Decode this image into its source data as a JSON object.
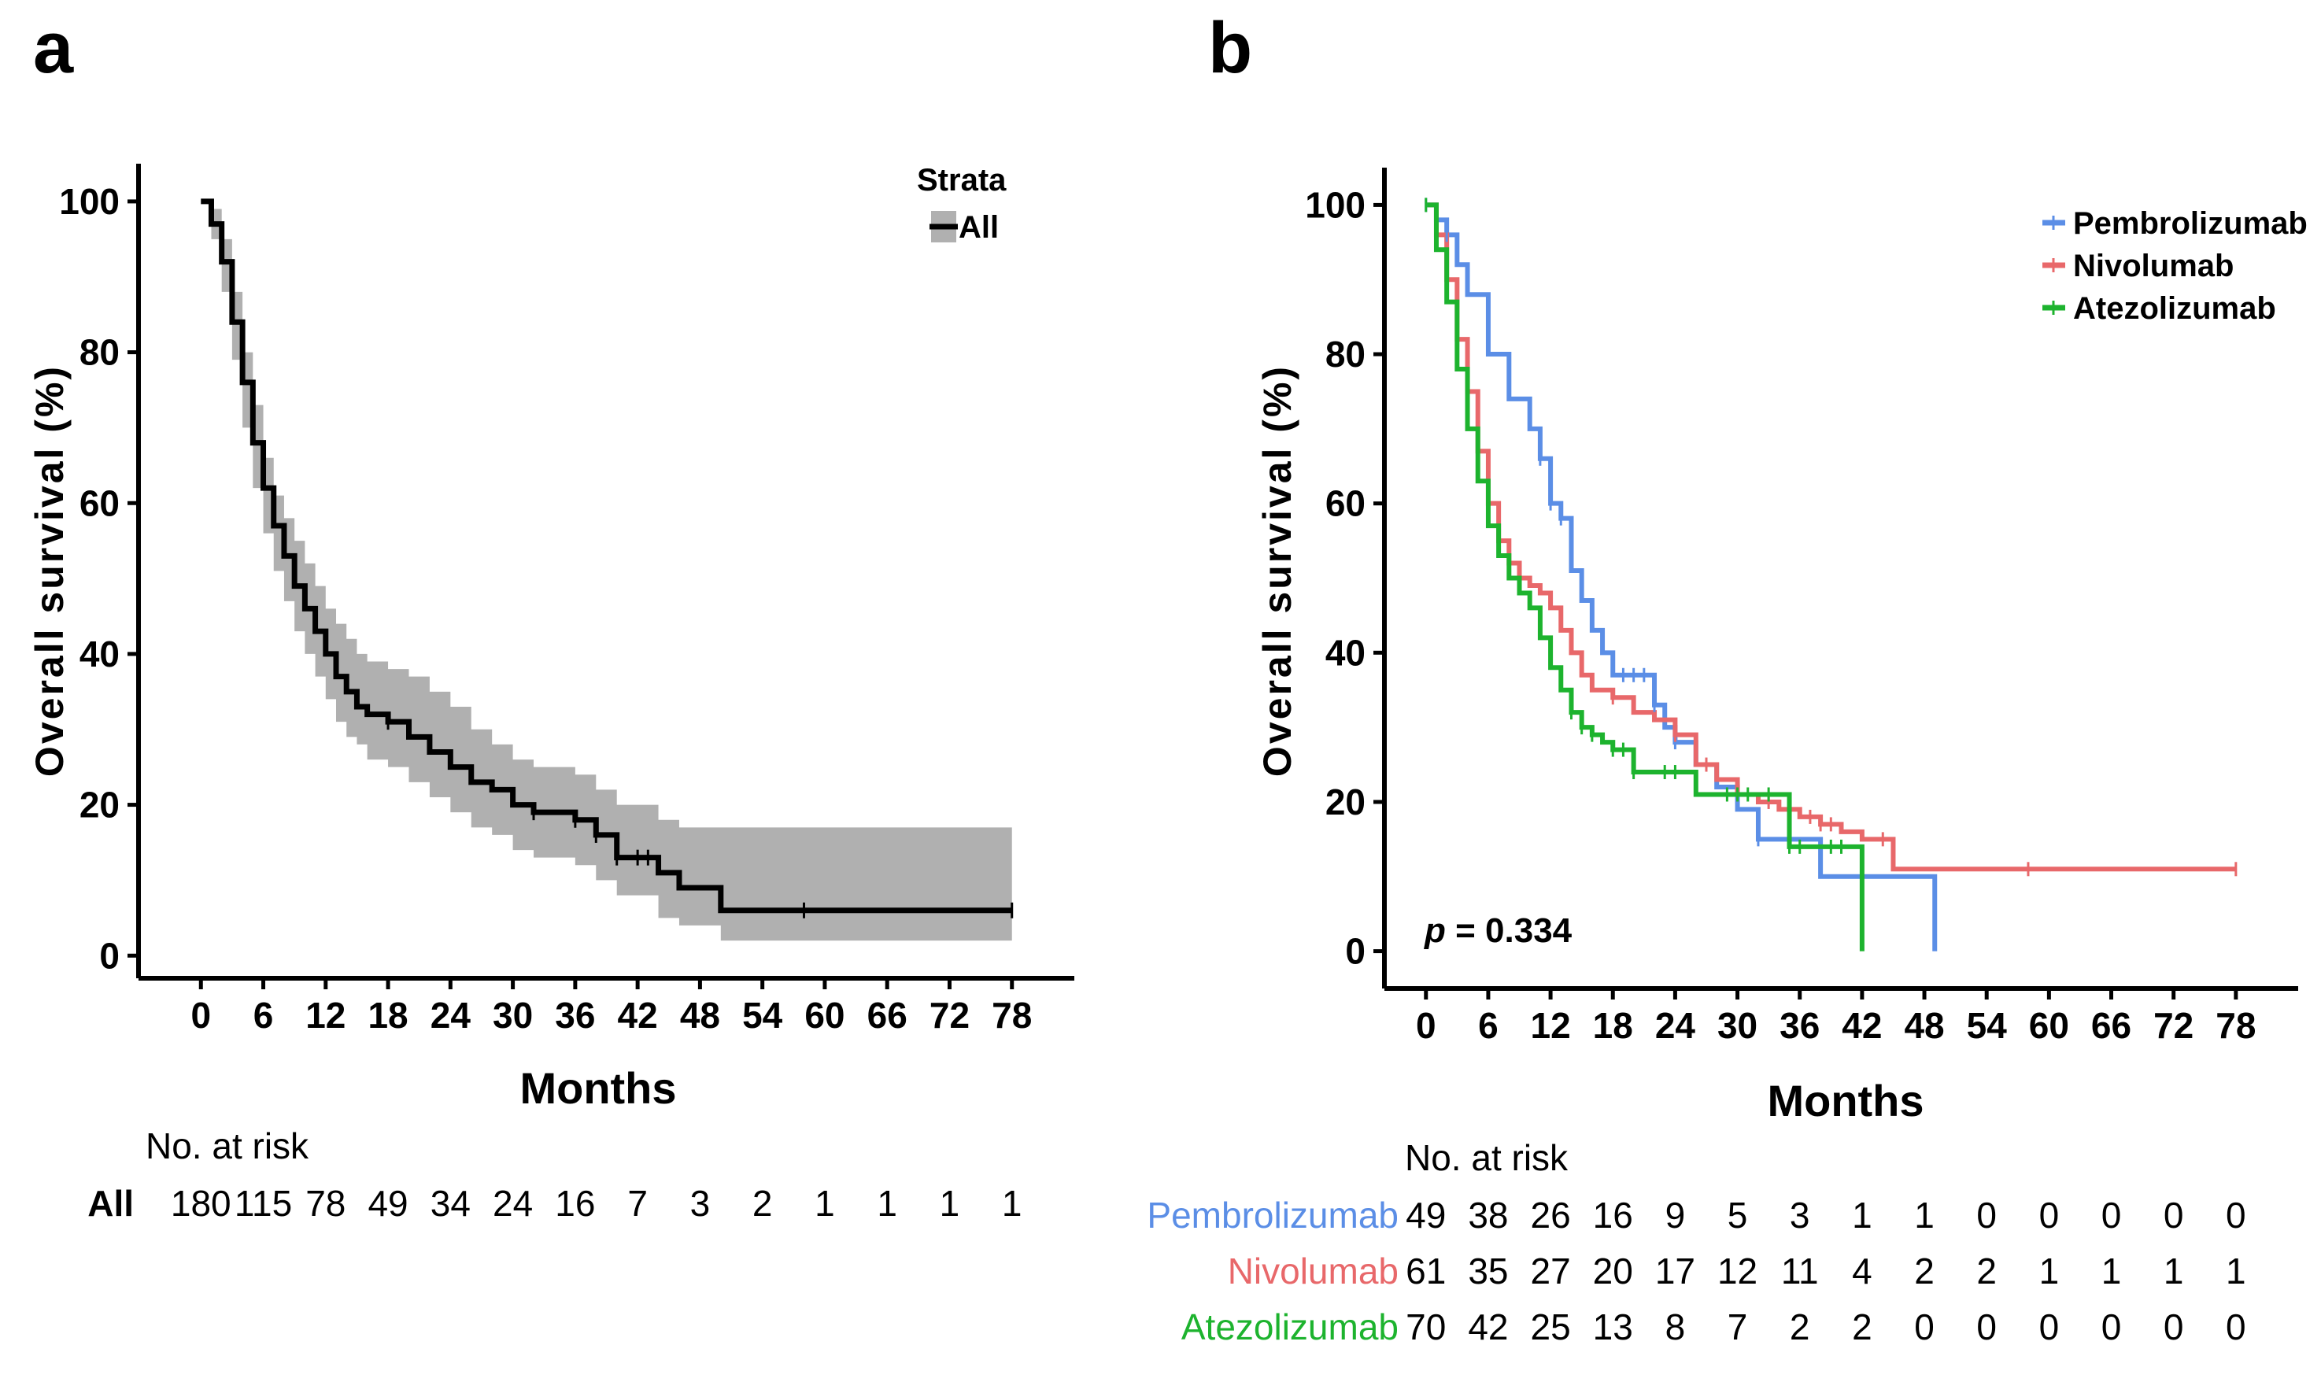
{
  "figure": {
    "panel_a_label": "a",
    "panel_b_label": "b",
    "no_at_risk_label": "No. at risk",
    "p_value_label": "p",
    "p_value_text": " = 0.334"
  },
  "colors": {
    "all": "#000000",
    "ci_band": "#b0b0b0",
    "pembrolizumab": "#5b8ee6",
    "nivolumab": "#e8686a",
    "atezolizumab": "#1db32e"
  },
  "chart_data": [
    {
      "panel": "a",
      "type": "line",
      "step": true,
      "xlabel": "Months",
      "ylabel": "Overall survival (%)",
      "xlim": [
        -6,
        84
      ],
      "ylim": [
        -3,
        105
      ],
      "xticks": [
        0,
        6,
        12,
        18,
        24,
        30,
        36,
        42,
        48,
        54,
        60,
        66,
        72,
        78
      ],
      "yticks": [
        0,
        20,
        40,
        60,
        80,
        100
      ],
      "legend": {
        "title": "Strata",
        "position": "top-right",
        "entries": [
          "All"
        ]
      },
      "series": [
        {
          "name": "All",
          "x": [
            0,
            1,
            2,
            3,
            4,
            5,
            6,
            7,
            8,
            9,
            10,
            11,
            12,
            13,
            14,
            15,
            16,
            17,
            18,
            20,
            22,
            24,
            26,
            28,
            30,
            32,
            34,
            36,
            38,
            40,
            42,
            44,
            46,
            48,
            50,
            78
          ],
          "y": [
            100,
            97,
            92,
            84,
            76,
            68,
            62,
            57,
            53,
            49,
            46,
            43,
            40,
            37,
            35,
            33,
            32,
            32,
            31,
            29,
            27,
            25,
            23,
            22,
            20,
            19,
            19,
            18,
            16,
            13,
            13,
            11,
            9,
            9,
            6,
            6
          ],
          "ci_upper": [
            100,
            99,
            95,
            88,
            80,
            73,
            66,
            61,
            58,
            55,
            52,
            49,
            46,
            44,
            42,
            40,
            39,
            39,
            38,
            37,
            35,
            33,
            30,
            28,
            26,
            25,
            25,
            24,
            22,
            20,
            20,
            18,
            17,
            17,
            17,
            17
          ],
          "ci_lower": [
            100,
            95,
            88,
            79,
            70,
            62,
            56,
            51,
            47,
            43,
            40,
            37,
            34,
            31,
            29,
            28,
            26,
            26,
            25,
            23,
            21,
            19,
            17,
            16,
            14,
            13,
            13,
            12,
            10,
            8,
            8,
            5,
            4,
            4,
            2,
            2
          ],
          "censor_x": [
            18,
            32,
            36,
            38,
            40,
            42,
            43,
            58,
            78
          ]
        }
      ],
      "risk_table": {
        "times": [
          0,
          6,
          12,
          18,
          24,
          30,
          36,
          42,
          48,
          54,
          60,
          66,
          72,
          78
        ],
        "rows": [
          {
            "name": "All",
            "values": [
              "180",
              "115",
              "78",
              "49",
              "34",
              "24",
              "16",
              "7",
              "3",
              "2",
              "1",
              "1",
              "1",
              "1"
            ]
          }
        ]
      }
    },
    {
      "panel": "b",
      "type": "line",
      "step": true,
      "xlabel": "Months",
      "ylabel": "Overall survival (%)",
      "xlim": [
        -4,
        84
      ],
      "ylim": [
        -5,
        105
      ],
      "xticks": [
        0,
        6,
        12,
        18,
        24,
        30,
        36,
        42,
        48,
        54,
        60,
        66,
        72,
        78
      ],
      "yticks": [
        0,
        20,
        40,
        60,
        80,
        100
      ],
      "legend": {
        "title": "",
        "position": "top-right",
        "entries": [
          "Pembrolizumab",
          "Nivolumab",
          "Atezolizumab"
        ]
      },
      "series": [
        {
          "name": "Pembrolizumab",
          "x": [
            0,
            1,
            2,
            3,
            4,
            6,
            8,
            10,
            11,
            12,
            13,
            14,
            15,
            16,
            17,
            18,
            22,
            23,
            24,
            26,
            28,
            30,
            32,
            34,
            38,
            42,
            44,
            46,
            48,
            49,
            49
          ],
          "y": [
            100,
            98,
            96,
            92,
            88,
            80,
            74,
            70,
            66,
            60,
            58,
            51,
            47,
            43,
            40,
            37,
            33,
            30,
            28,
            25,
            22,
            19,
            15,
            15,
            10,
            10,
            10,
            10,
            10,
            10,
            0
          ],
          "censor_x": [
            0,
            2,
            11,
            12,
            13,
            19,
            20,
            21,
            22,
            24,
            32
          ]
        },
        {
          "name": "Nivolumab",
          "x": [
            0,
            1,
            2,
            3,
            4,
            5,
            6,
            7,
            8,
            9,
            10,
            11,
            12,
            13,
            14,
            15,
            16,
            18,
            20,
            22,
            24,
            26,
            28,
            30,
            32,
            34,
            36,
            38,
            40,
            42,
            45,
            78
          ],
          "y": [
            100,
            96,
            90,
            82,
            75,
            67,
            60,
            55,
            52,
            50,
            49,
            48,
            46,
            43,
            40,
            37,
            35,
            34,
            32,
            31,
            29,
            25,
            23,
            21,
            20,
            19,
            18,
            17,
            16,
            15,
            11,
            11
          ],
          "censor_x": [
            18,
            24,
            27,
            30,
            33,
            37,
            38,
            39,
            44,
            58,
            78
          ]
        },
        {
          "name": "Atezolizumab",
          "x": [
            0,
            1,
            2,
            3,
            4,
            5,
            6,
            7,
            8,
            9,
            10,
            11,
            12,
            13,
            14,
            15,
            16,
            17,
            18,
            20,
            22,
            26,
            30,
            32,
            34,
            35,
            38,
            40,
            42,
            42
          ],
          "y": [
            100,
            94,
            87,
            78,
            70,
            63,
            57,
            53,
            50,
            48,
            46,
            42,
            38,
            35,
            32,
            30,
            29,
            28,
            27,
            24,
            24,
            21,
            21,
            21,
            21,
            14,
            14,
            14,
            14,
            0
          ],
          "censor_x": [
            0,
            14,
            15,
            16,
            18,
            19,
            20,
            23,
            24,
            29,
            30,
            31,
            33,
            35,
            36,
            39,
            40
          ]
        }
      ],
      "risk_table": {
        "times": [
          0,
          6,
          12,
          18,
          24,
          30,
          36,
          42,
          48,
          54,
          60,
          66,
          72,
          78
        ],
        "rows": [
          {
            "name": "Pembrolizumab",
            "values": [
              "49",
              "38",
              "26",
              "16",
              "9",
              "5",
              "3",
              "1",
              "1",
              "0",
              "0",
              "0",
              "0",
              "0"
            ]
          },
          {
            "name": "Nivolumab",
            "values": [
              "61",
              "35",
              "27",
              "20",
              "17",
              "12",
              "11",
              "4",
              "2",
              "2",
              "1",
              "1",
              "1",
              "1"
            ]
          },
          {
            "name": "Atezolizumab",
            "values": [
              "70",
              "42",
              "25",
              "13",
              "8",
              "7",
              "2",
              "2",
              "0",
              "0",
              "0",
              "0",
              "0",
              "0"
            ]
          }
        ]
      }
    }
  ]
}
